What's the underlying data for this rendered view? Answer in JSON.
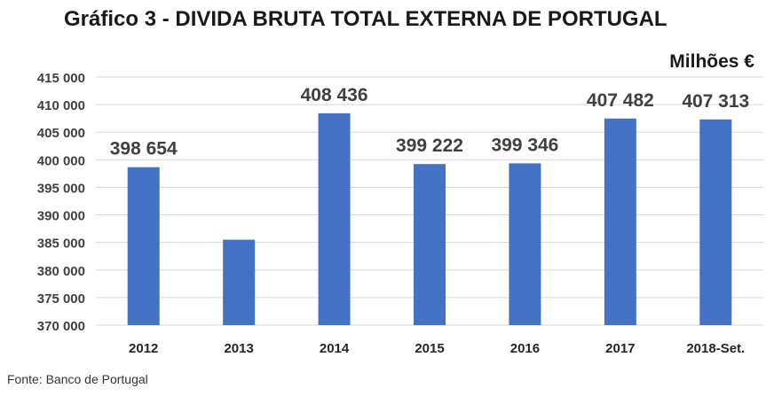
{
  "chart_data": {
    "type": "bar",
    "title": "Gráfico 3 - DIVIDA BRUTA TOTAL EXTERNA DE PORTUGAL",
    "unit_label": "Milhões €",
    "categories": [
      "2012",
      "2013",
      "2014",
      "2015",
      "2016",
      "2017",
      "2018-Set."
    ],
    "values": [
      398654,
      385500,
      408436,
      399222,
      399346,
      407482,
      407313
    ],
    "data_labels": [
      "398 654",
      "",
      "408 436",
      "399 222",
      "399 346",
      "407 482",
      "407 313"
    ],
    "y_ticks": [
      370000,
      375000,
      380000,
      385000,
      390000,
      395000,
      400000,
      405000,
      410000,
      415000
    ],
    "y_tick_labels": [
      "370 000",
      "375 000",
      "380 000",
      "385 000",
      "390 000",
      "395 000",
      "400 000",
      "405 000",
      "410 000",
      "415 000"
    ],
    "ylim": [
      370000,
      415000
    ],
    "bar_color": "#4472c4",
    "grid": true,
    "source": "Fonte: Banco de Portugal"
  }
}
